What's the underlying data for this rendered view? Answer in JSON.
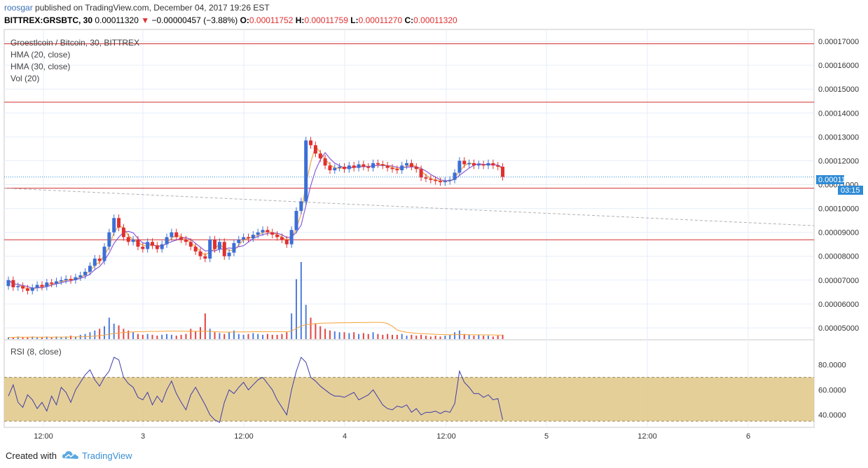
{
  "header": {
    "author": "roosgar",
    "published": "published on TradingView.com, December 04, 2017 19:26 EST",
    "symbol": "BITTREX:GRSBTC, 30",
    "last": "0.00011320",
    "change": "−0.00000457 (−3.88%)",
    "o_label": "O:",
    "o": "0.00011752",
    "h_label": "H:",
    "h": "0.00011759",
    "l_label": "L:",
    "l": "0.00011270",
    "c_label": "C:",
    "c": "0.00011320"
  },
  "legend": {
    "title": "Groestlcoin / Bitcoin, 30, BITTREX",
    "hma20": "HMA (20, close)",
    "hma30": "HMA (30, close)",
    "vol": "Vol (20)",
    "rsi": "RSI (8, close)"
  },
  "price_label": "0.00011320",
  "countdown": "03:15",
  "footer": {
    "created": "Created with",
    "brand": "TradingView"
  },
  "colors": {
    "up": "#3c6fd6",
    "down": "#e0302f",
    "hma20": "#f5a33a",
    "hma30": "#8a5bd6",
    "hline": "#d32f2f",
    "rsi_band": "#e0c787",
    "rsi_line": "#3d3da8",
    "price_tag": "#2f8bd6"
  },
  "chart_data": [
    {
      "type": "candlestick",
      "title": "Groestlcoin / Bitcoin, 30, BITTREX",
      "interval_minutes": 30,
      "x_tick_labels": [
        "12:00",
        "3",
        "12:00",
        "4",
        "12:00",
        "5",
        "12:00",
        "6"
      ],
      "y_tick_labels": [
        "0.00017000",
        "0.00016000",
        "0.00015000",
        "0.00014000",
        "0.00013000",
        "0.00012000",
        "0.00011000",
        "0.00010000",
        "0.00009000",
        "0.00008000",
        "0.00007000",
        "0.00006000",
        "0.00005000"
      ],
      "ylim": [
        4.5e-05,
        0.000175
      ],
      "horizontal_lines": [
        0.000169,
        0.0001445,
        0.0001085,
        8.69e-05
      ],
      "trend_line": {
        "from": 0.0001085,
        "to": 9.28e-05
      },
      "last_price": 0.0001132,
      "closes": [
        7e-05,
        6.7e-05,
        6.75e-05,
        6.65e-05,
        6.55e-05,
        6.68e-05,
        6.8e-05,
        6.72e-05,
        6.9e-05,
        6.85e-05,
        6.95e-05,
        7e-05,
        7.05e-05,
        7e-05,
        7.12e-05,
        7.2e-05,
        7.35e-05,
        7.6e-05,
        7.9e-05,
        7.8e-05,
        8.4e-05,
        9e-05,
        9.6e-05,
        9.2e-05,
        8.8e-05,
        8.6e-05,
        8.7e-05,
        8.4e-05,
        8.3e-05,
        8.6e-05,
        8.45e-05,
        8.3e-05,
        8.5e-05,
        8.8e-05,
        9e-05,
        8.8e-05,
        8.7e-05,
        8.6e-05,
        8.4e-05,
        8.2e-05,
        8e-05,
        7.9e-05,
        8.7e-05,
        8.3e-05,
        8.6e-05,
        8e-05,
        8.15e-05,
        8.55e-05,
        8.7e-05,
        8.8e-05,
        8.75e-05,
        8.9e-05,
        9e-05,
        9.1e-05,
        9e-05,
        8.9e-05,
        8.8e-05,
        8.7e-05,
        8.5e-05,
        9.1e-05,
        9.9e-05,
        0.000103,
        0.0001285,
        0.0001265,
        0.000123,
        0.000121,
        0.000118,
        0.000116,
        0.000117,
        0.0001175,
        0.0001165,
        0.000118,
        0.000117,
        0.0001185,
        0.0001175,
        0.000117,
        0.000119,
        0.0001185,
        0.000118,
        0.000117,
        0.0001165,
        0.000116,
        0.000118,
        0.000119,
        0.0001175,
        0.0001165,
        0.000113,
        0.0001125,
        0.000112,
        0.0001115,
        0.000111,
        0.0001115,
        0.000112,
        0.000115,
        0.00012,
        0.0001185,
        0.000119,
        0.000118,
        0.0001185,
        0.000118,
        0.000119,
        0.000118,
        0.0001175,
        0.0001132
      ],
      "volumes": [
        2,
        2,
        3,
        2,
        2,
        3,
        2,
        2,
        3,
        2,
        3,
        2,
        3,
        4,
        3,
        5,
        6,
        8,
        10,
        12,
        15,
        25,
        18,
        16,
        12,
        10,
        8,
        6,
        5,
        6,
        5,
        4,
        5,
        6,
        5,
        4,
        5,
        6,
        12,
        9,
        14,
        30,
        12,
        8,
        7,
        6,
        8,
        10,
        6,
        5,
        6,
        7,
        6,
        5,
        6,
        5,
        5,
        6,
        8,
        30,
        70,
        90,
        40,
        25,
        18,
        15,
        12,
        10,
        9,
        8,
        8,
        7,
        8,
        6,
        7,
        6,
        8,
        6,
        5,
        6,
        5,
        5,
        6,
        4,
        5,
        4,
        5,
        4,
        3,
        4,
        3,
        4,
        5,
        8,
        10,
        6,
        5,
        4,
        5,
        4,
        4,
        3,
        4,
        5
      ]
    },
    {
      "type": "line",
      "title": "RSI (8, close)",
      "ylim": [
        30,
        100
      ],
      "y_tick_labels": [
        "80.0000",
        "60.0000",
        "40.0000"
      ],
      "band": [
        35,
        70
      ],
      "values": [
        55,
        64,
        50,
        46,
        56,
        52,
        45,
        50,
        43,
        55,
        48,
        62,
        58,
        50,
        60,
        66,
        72,
        76,
        68,
        63,
        70,
        75,
        86,
        84,
        70,
        65,
        62,
        54,
        52,
        58,
        48,
        55,
        50,
        60,
        67,
        57,
        50,
        44,
        56,
        62,
        55,
        48,
        40,
        36,
        34,
        50,
        60,
        57,
        62,
        66,
        60,
        64,
        68,
        70,
        65,
        60,
        52,
        46,
        40,
        60,
        75,
        86,
        82,
        70,
        67,
        63,
        60,
        57,
        55,
        55,
        54,
        56,
        58,
        52,
        54,
        56,
        60,
        54,
        48,
        45,
        44,
        47,
        46,
        48,
        42,
        45,
        40,
        42,
        42,
        43,
        41,
        43,
        42,
        49,
        75,
        66,
        62,
        57,
        57,
        54,
        56,
        52,
        53,
        36
      ]
    }
  ]
}
